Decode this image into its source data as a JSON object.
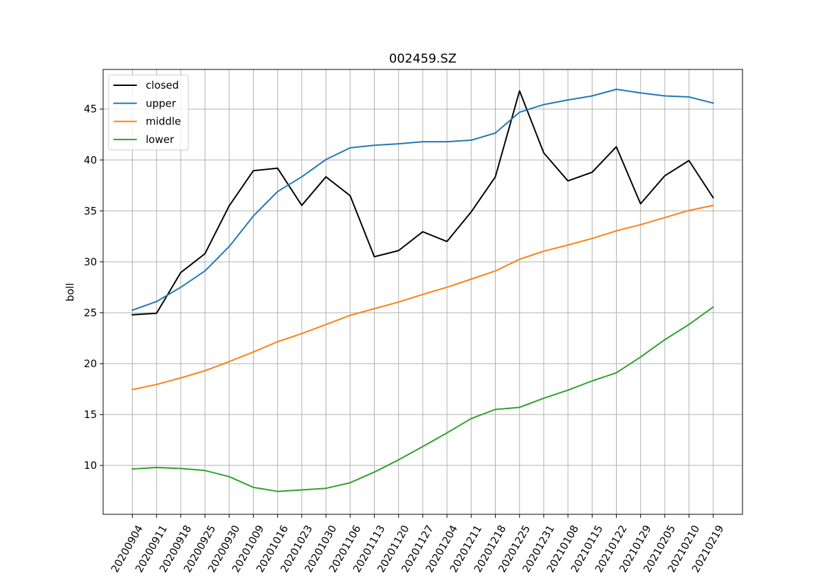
{
  "chart_data": {
    "type": "line",
    "title": "002459.SZ",
    "xlabel": "",
    "ylabel": "boll",
    "categories": [
      "20200904",
      "20200911",
      "20200918",
      "20200925",
      "20200930",
      "20201009",
      "20201016",
      "20201023",
      "20201030",
      "20201106",
      "20201113",
      "20201120",
      "20201127",
      "20201204",
      "20201211",
      "20201218",
      "20201225",
      "20201231",
      "20210108",
      "20210115",
      "20210122",
      "20210129",
      "20210205",
      "20210210",
      "20210219"
    ],
    "ylim": [
      5.2,
      48.9
    ],
    "yticks": [
      10,
      15,
      20,
      25,
      30,
      35,
      40,
      45
    ],
    "grid": true,
    "legend_position": "upper-left",
    "series": [
      {
        "name": "closed",
        "color": "#000000",
        "values": [
          24.8,
          24.95,
          28.95,
          30.8,
          35.5,
          38.95,
          39.2,
          35.55,
          38.35,
          36.5,
          30.5,
          31.1,
          32.95,
          32.0,
          34.9,
          38.35,
          46.8,
          40.7,
          37.95,
          38.8,
          41.3,
          35.7,
          38.45,
          39.95,
          36.3
        ]
      },
      {
        "name": "upper",
        "color": "#1f77b4",
        "values": [
          25.25,
          26.1,
          27.5,
          29.1,
          31.5,
          34.5,
          36.9,
          38.35,
          40.05,
          41.2,
          41.45,
          41.6,
          41.8,
          41.8,
          41.95,
          42.65,
          44.7,
          45.45,
          45.9,
          46.3,
          46.95,
          46.6,
          46.3,
          46.2,
          45.6
        ]
      },
      {
        "name": "middle",
        "color": "#ff7f0e",
        "values": [
          17.45,
          17.95,
          18.6,
          19.3,
          20.2,
          21.15,
          22.15,
          22.95,
          23.85,
          24.75,
          25.4,
          26.05,
          26.8,
          27.5,
          28.3,
          29.1,
          30.25,
          31.05,
          31.65,
          32.3,
          33.05,
          33.65,
          34.35,
          35.05,
          35.55
        ]
      },
      {
        "name": "lower",
        "color": "#2ca02c",
        "values": [
          9.65,
          9.8,
          9.7,
          9.5,
          8.9,
          7.85,
          7.45,
          7.6,
          7.75,
          8.3,
          9.35,
          10.55,
          11.85,
          13.2,
          14.6,
          15.5,
          15.7,
          16.6,
          17.4,
          18.3,
          19.1,
          20.65,
          22.35,
          23.85,
          25.55
        ]
      }
    ]
  }
}
